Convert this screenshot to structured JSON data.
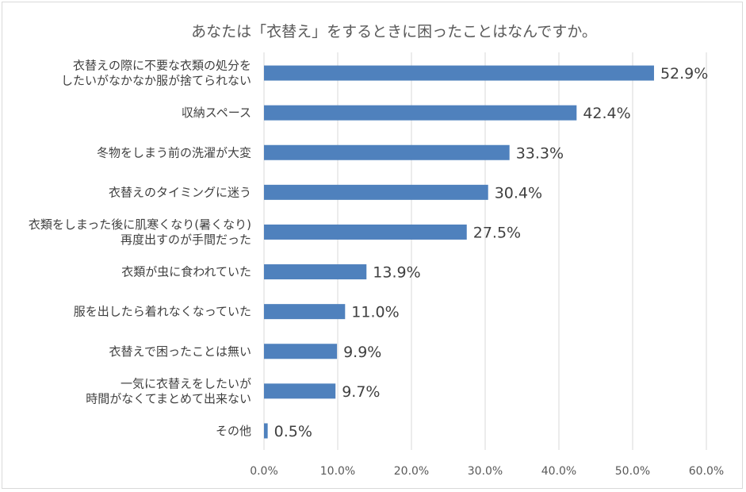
{
  "chart_data": {
    "type": "bar",
    "orientation": "horizontal",
    "title": "あなたは「衣替え」をするときに困ったことはなんですか。",
    "categories": [
      [
        "衣替えの際に不要な衣類の処分を",
        "したいがなかなか服が捨てられない"
      ],
      [
        "収納スペース"
      ],
      [
        "冬物をしまう前の洗濯が大変"
      ],
      [
        "衣替えのタイミングに迷う"
      ],
      [
        "衣類をしまった後に肌寒くなり(暑くなり)",
        "再度出すのが手間だった"
      ],
      [
        "衣類が虫に食われていた"
      ],
      [
        "服を出したら着れなくなっていた"
      ],
      [
        "衣替えで困ったことは無い"
      ],
      [
        "一気に衣替えをしたいが",
        "時間がなくてまとめて出来ない"
      ],
      [
        "その他"
      ]
    ],
    "values": [
      52.9,
      42.4,
      33.3,
      30.4,
      27.5,
      13.9,
      11.0,
      9.9,
      9.7,
      0.5
    ],
    "value_labels": [
      "52.9%",
      "42.4%",
      "33.3%",
      "30.4%",
      "27.5%",
      "13.9%",
      "11.0%",
      "9.9%",
      "9.7%",
      "0.5%"
    ],
    "xlim": [
      0,
      60
    ],
    "x_ticks": [
      0,
      10,
      20,
      30,
      40,
      50,
      60
    ],
    "x_tick_labels": [
      "0.0%",
      "10.0%",
      "20.0%",
      "30.0%",
      "40.0%",
      "50.0%",
      "60.0%"
    ],
    "gridlines": true,
    "legend": false,
    "bar_color": "#4f81bd",
    "grid_color": "#d9d9d9"
  }
}
